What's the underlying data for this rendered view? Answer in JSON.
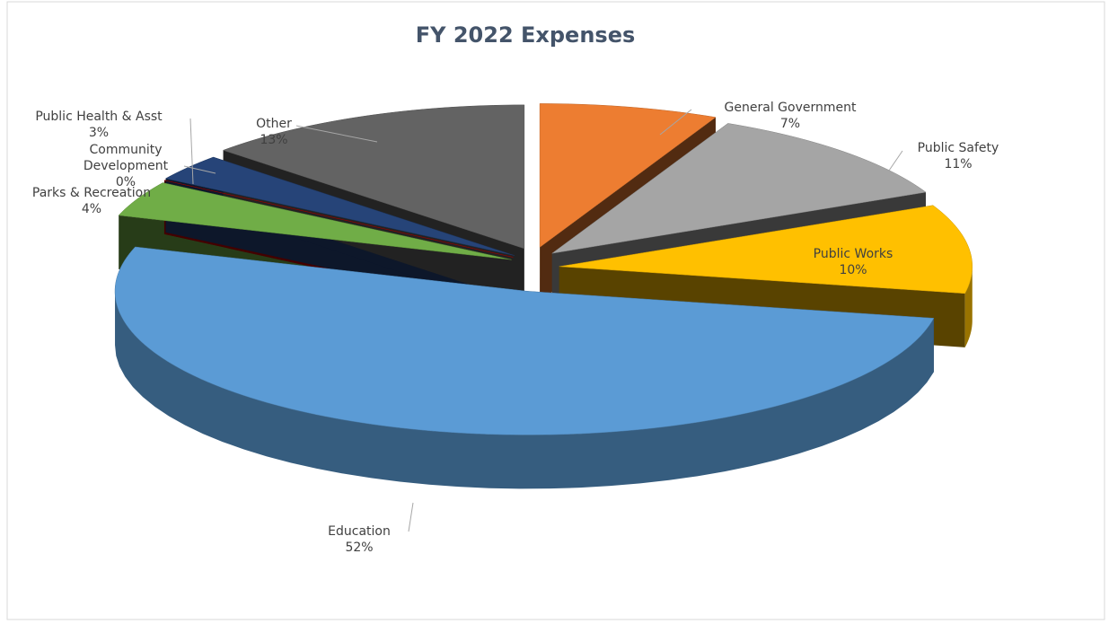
{
  "chart_data": {
    "type": "pie",
    "title": "FY 2022 Expenses",
    "categories": [
      "General Government",
      "Public Safety",
      "Public Works",
      "Education",
      "Parks & Recreation",
      "Community Development",
      "Public Health & Asst",
      "Other"
    ],
    "values": [
      7,
      11,
      10,
      52,
      4,
      0,
      3,
      13
    ],
    "value_labels": [
      "7%",
      "11%",
      "10%",
      "52%",
      "4%",
      "0%",
      "3%",
      "13%"
    ],
    "colors": [
      "#ed7d31",
      "#a5a5a5",
      "#ffc000",
      "#5b9bd5",
      "#70ad47",
      "#c00000",
      "#264478",
      "#636363"
    ]
  }
}
